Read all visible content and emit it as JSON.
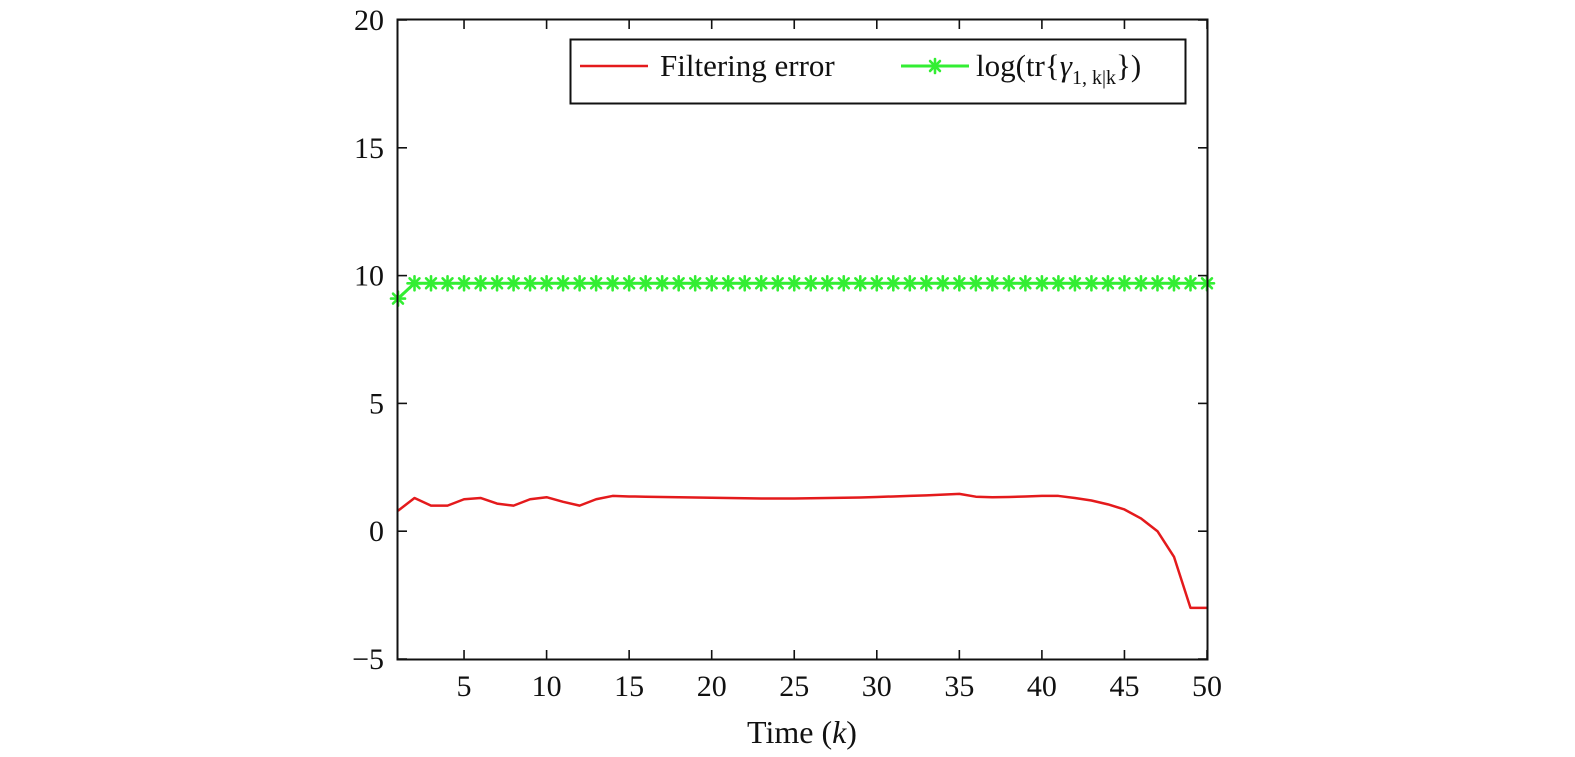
{
  "chart_data": {
    "type": "line",
    "title": "",
    "xlabel": {
      "prefix": "Time (",
      "var": "k",
      "suffix": ")"
    },
    "ylabel": "",
    "xlim": [
      1,
      50
    ],
    "ylim": [
      -5,
      20
    ],
    "xticks": [
      5,
      10,
      15,
      20,
      25,
      30,
      35,
      40,
      45,
      50
    ],
    "yticks": [
      -5,
      0,
      5,
      10,
      15,
      20
    ],
    "ytick_labels": [
      "−5",
      "0",
      "5",
      "10",
      "15",
      "20"
    ],
    "grid": false,
    "legend_placement": "top-right",
    "x": [
      1,
      2,
      3,
      4,
      5,
      6,
      7,
      8,
      9,
      10,
      11,
      12,
      13,
      14,
      15,
      16,
      17,
      18,
      19,
      20,
      21,
      22,
      23,
      24,
      25,
      26,
      27,
      28,
      29,
      30,
      31,
      32,
      33,
      34,
      35,
      36,
      37,
      38,
      39,
      40,
      41,
      42,
      43,
      44,
      45,
      46,
      47,
      48,
      49,
      50
    ],
    "series": [
      {
        "name": "Filtering error",
        "color": "#e41a1c",
        "marker": "none",
        "values": [
          0.8,
          1.3,
          1.0,
          1.0,
          1.25,
          1.3,
          1.08,
          1.0,
          1.25,
          1.33,
          1.15,
          1.0,
          1.25,
          1.38,
          1.36,
          1.35,
          1.34,
          1.33,
          1.32,
          1.31,
          1.3,
          1.29,
          1.28,
          1.28,
          1.28,
          1.29,
          1.3,
          1.31,
          1.32,
          1.34,
          1.36,
          1.38,
          1.4,
          1.43,
          1.46,
          1.35,
          1.33,
          1.34,
          1.36,
          1.38,
          1.38,
          1.3,
          1.2,
          1.05,
          0.85,
          0.5,
          0.0,
          -1.0,
          -3.0,
          -3.0
        ]
      },
      {
        "name_parts": {
          "prefix": "log(tr{",
          "symbol": "γ",
          "subscript": "1, k|k",
          "suffix": "})"
        },
        "color": "#33ee33",
        "marker": "asterisk",
        "values": [
          9.1,
          9.7,
          9.7,
          9.7,
          9.7,
          9.7,
          9.7,
          9.7,
          9.7,
          9.7,
          9.7,
          9.7,
          9.7,
          9.7,
          9.7,
          9.7,
          9.7,
          9.7,
          9.7,
          9.7,
          9.7,
          9.7,
          9.7,
          9.7,
          9.7,
          9.7,
          9.7,
          9.7,
          9.7,
          9.7,
          9.7,
          9.7,
          9.7,
          9.7,
          9.7,
          9.7,
          9.7,
          9.7,
          9.7,
          9.7,
          9.7,
          9.7,
          9.7,
          9.7,
          9.7,
          9.7,
          9.7,
          9.7,
          9.7,
          9.7
        ]
      }
    ]
  }
}
